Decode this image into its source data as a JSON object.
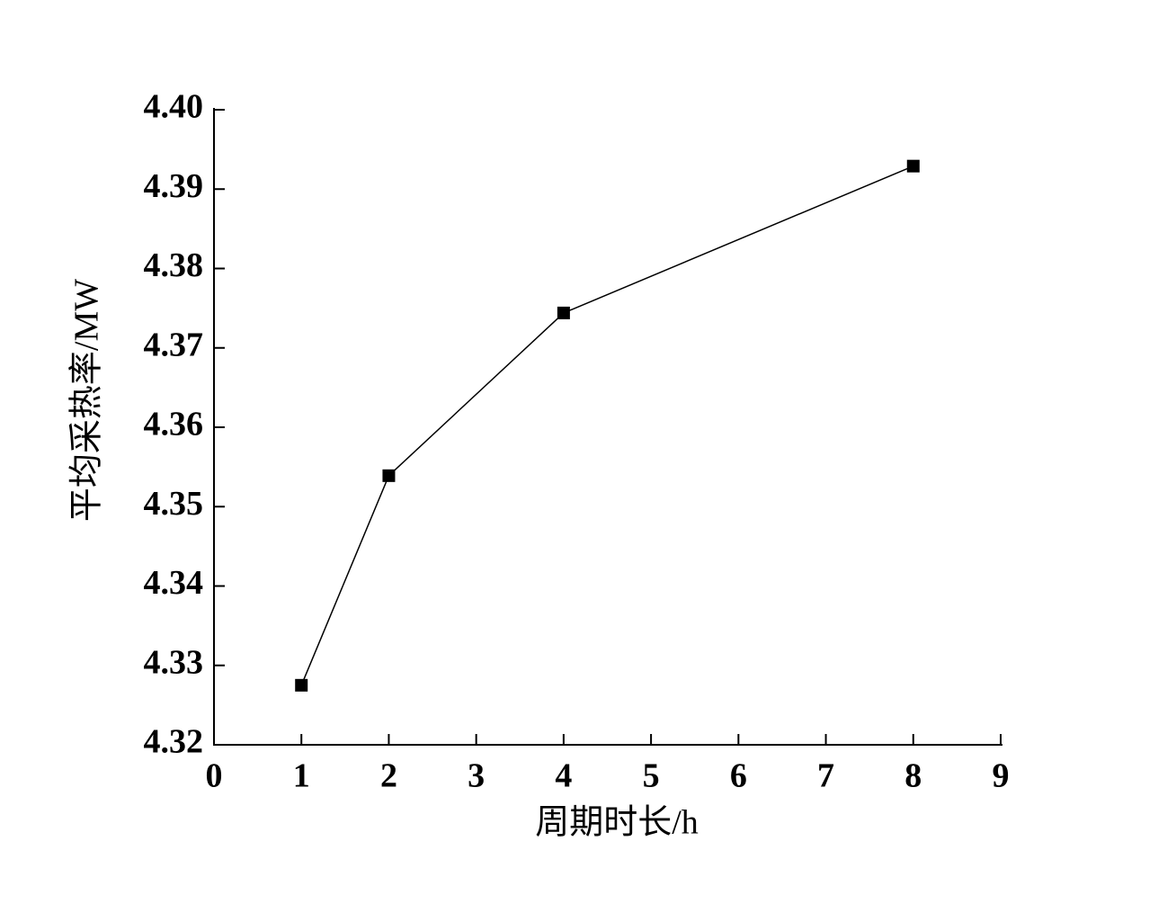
{
  "chart_data": {
    "type": "line",
    "x_label": "周期时长/h",
    "y_label": "平均采热率/MW",
    "x": [
      1,
      2,
      4,
      8
    ],
    "values": [
      4.3275,
      4.3539,
      4.3744,
      4.3929
    ],
    "color": "#000000",
    "marker": "square",
    "xlim": [
      0,
      9
    ],
    "xticks": [
      0,
      1,
      2,
      3,
      4,
      5,
      6,
      7,
      8,
      9
    ],
    "ylim": [
      4.32,
      4.4
    ],
    "yticks": [
      4.32,
      4.33,
      4.34,
      4.35,
      4.36,
      4.37,
      4.38,
      4.39,
      {
        "value": 4.4,
        "label": "4.40"
      }
    ],
    "grid": false
  }
}
